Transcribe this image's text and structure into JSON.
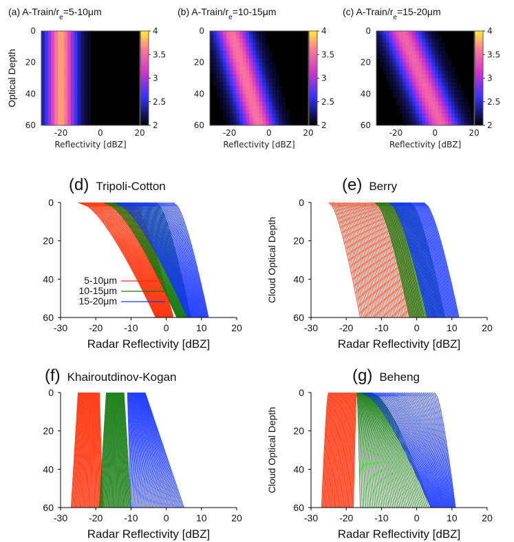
{
  "colors": {
    "red": "#ff2a00",
    "green": "#137a0f",
    "blue": "#1433ff"
  },
  "heatmaps": [
    {
      "title": "(a) A-Train/r",
      "title_sub": "e",
      "title_tail": "=5-10μm",
      "ylabel": "Optical Depth",
      "xlabel": "Reflectivity [dBZ]",
      "center": [
        -20,
        -20
      ],
      "spread": 4.5,
      "peak": 3.2
    },
    {
      "title": "(b) A-Train/r",
      "title_sub": "e",
      "title_tail": "=10-15μm",
      "ylabel": "",
      "xlabel": "Reflectivity [dBZ]",
      "center": [
        -19,
        -5
      ],
      "spread": 5,
      "peak": 3.0
    },
    {
      "title": "(c) A-Train/r",
      "title_sub": "e",
      "title_tail": "=15-20μm",
      "ylabel": "",
      "xlabel": "Reflectivity [dBZ]",
      "center": [
        -17,
        3
      ],
      "spread": 5.5,
      "peak": 2.9
    }
  ],
  "heat_axes": {
    "xticks": [
      "-20",
      "0",
      "20"
    ],
    "yticks": [
      "0",
      "20",
      "40",
      "60"
    ],
    "cbar_ticks": [
      "4",
      "3.5",
      "3",
      "2.5",
      "2"
    ]
  },
  "chart_data": [
    {
      "type": "line",
      "panel": "(d)",
      "title": "Tripoli-Cotton",
      "xlabel": "Radar Reflectivity [dBZ]",
      "ylabel": "",
      "xlim": [
        -30,
        20
      ],
      "ylim": [
        60,
        0
      ],
      "xticks": [
        "-30",
        "-20",
        "-10",
        "0",
        "10",
        "20"
      ],
      "yticks": [
        "0",
        "20",
        "40",
        "60"
      ],
      "legend": "bottom-left",
      "series": [
        {
          "name": "5-10μm",
          "top_range": [
            -25,
            -10
          ],
          "bottom_range": [
            -3,
            2
          ]
        },
        {
          "name": "10-15μm",
          "top_range": [
            -18,
            -3
          ],
          "bottom_range": [
            3,
            7
          ]
        },
        {
          "name": "15-20μm",
          "top_range": [
            -15,
            2
          ],
          "bottom_range": [
            6,
            12
          ]
        }
      ]
    },
    {
      "type": "line",
      "panel": "(e)",
      "title": "Berry",
      "xlabel": "Radar Reflectivity [dBZ]",
      "ylabel": "Cloud Optical Depth",
      "xlim": [
        -30,
        20
      ],
      "ylim": [
        60,
        0
      ],
      "xticks": [
        "-30",
        "-20",
        "-10",
        "0",
        "10",
        "20"
      ],
      "yticks": [
        "0",
        "20",
        "40",
        "60"
      ],
      "series": [
        {
          "name": "5-10μm",
          "top_range": [
            -25,
            -8
          ],
          "bottom_range": [
            -16,
            2
          ]
        },
        {
          "name": "10-15μm",
          "top_range": [
            -12,
            -2
          ],
          "bottom_range": [
            -2,
            8
          ]
        },
        {
          "name": "15-20μm",
          "top_range": [
            -8,
            2
          ],
          "bottom_range": [
            3,
            12
          ]
        }
      ]
    },
    {
      "type": "line",
      "panel": "(f)",
      "title": "Khairoutdinov-Kogan",
      "xlabel": "Radar Reflectivity [dBZ]",
      "ylabel": "",
      "xlim": [
        -30,
        20
      ],
      "ylim": [
        60,
        0
      ],
      "xticks": [
        "-30",
        "-20",
        "-10",
        "0",
        "10",
        "20"
      ],
      "yticks": [
        "0",
        "20",
        "40",
        "60"
      ],
      "series": [
        {
          "name": "5-10μm",
          "top_range": [
            -25,
            -19
          ],
          "bottom_range": [
            -27,
            -18
          ]
        },
        {
          "name": "10-15μm",
          "top_range": [
            -17,
            -12
          ],
          "bottom_range": [
            -19,
            -10
          ]
        },
        {
          "name": "15-20μm",
          "top_range": [
            -11,
            -6
          ],
          "bottom_range": [
            -10,
            5
          ]
        }
      ]
    },
    {
      "type": "line",
      "panel": "(g)",
      "title": "Beheng",
      "xlabel": "Radar Reflectivity [dBZ]",
      "ylabel": "Cloud Optical Depth",
      "xlim": [
        -30,
        20
      ],
      "ylim": [
        60,
        0
      ],
      "xticks": [
        "-30",
        "-20",
        "-10",
        "0",
        "10",
        "20"
      ],
      "yticks": [
        "0",
        "20",
        "40",
        "60"
      ],
      "series": [
        {
          "name": "5-10μm",
          "top_range": [
            -25,
            -17
          ],
          "bottom_range": [
            -27,
            -18
          ]
        },
        {
          "name": "10-15μm",
          "top_range": [
            -17,
            -13
          ],
          "bottom_range": [
            -16,
            4
          ]
        },
        {
          "name": "15-20μm",
          "top_range": [
            -16,
            5
          ],
          "bottom_range": [
            4,
            11
          ]
        }
      ]
    }
  ]
}
